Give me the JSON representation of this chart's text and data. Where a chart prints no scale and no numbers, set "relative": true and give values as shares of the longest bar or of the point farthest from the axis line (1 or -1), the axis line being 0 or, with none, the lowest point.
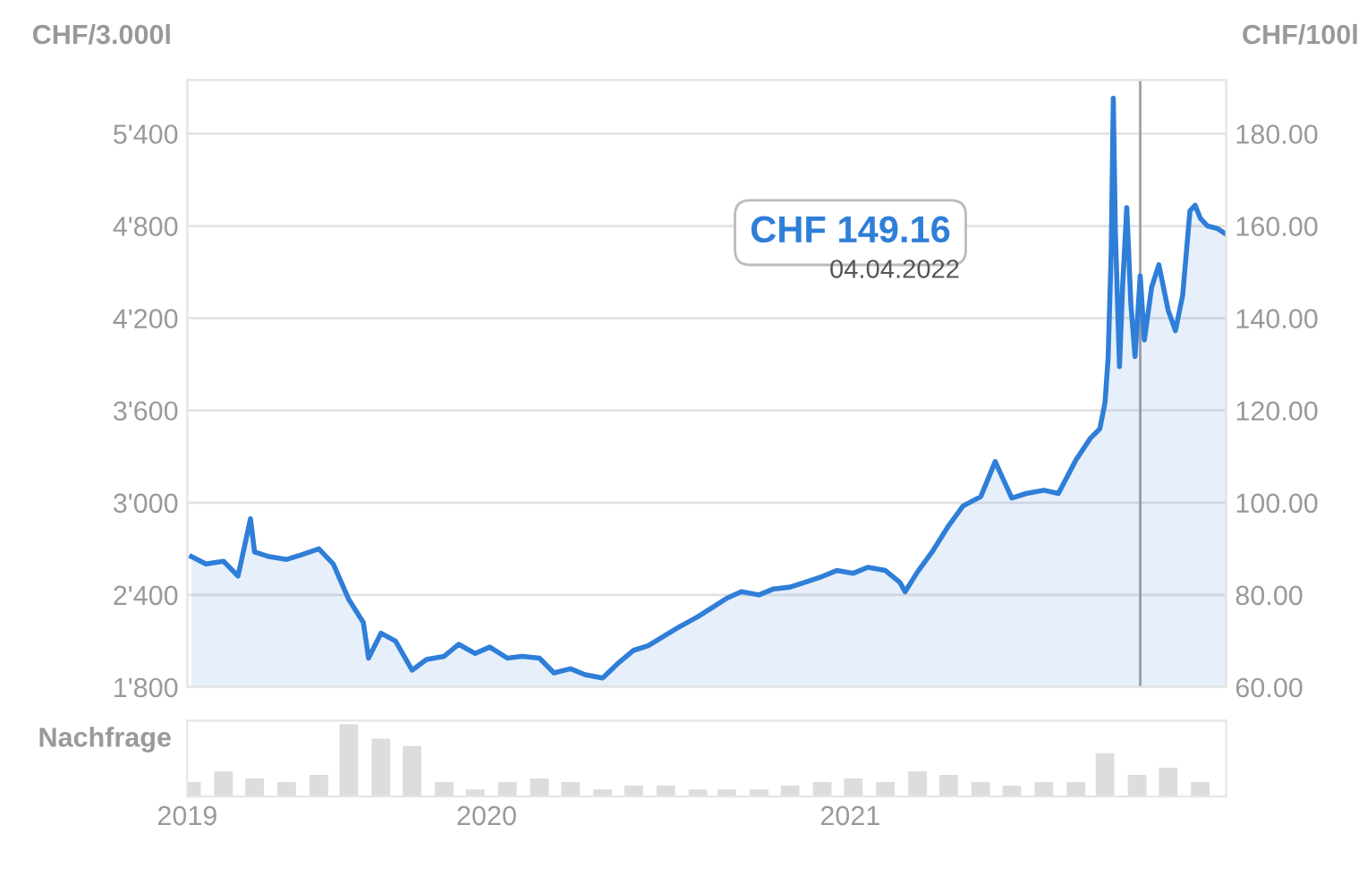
{
  "chart_data": [
    {
      "type": "area",
      "ylabel": "CHF/3.000l",
      "y2label": "CHF/100l",
      "x": [
        "2019-10-01",
        "2019-10-15",
        "2019-11-01",
        "2019-11-15",
        "2019-11-27",
        "2019-12-01",
        "2019-12-15",
        "2020-01-01",
        "2020-01-15",
        "2020-02-01",
        "2020-02-15",
        "2020-03-01",
        "2020-03-15",
        "2020-03-20",
        "2020-04-01",
        "2020-04-15",
        "2020-05-01",
        "2020-05-15",
        "2020-06-01",
        "2020-06-15",
        "2020-07-01",
        "2020-07-15",
        "2020-08-01",
        "2020-08-15",
        "2020-09-01",
        "2020-09-15",
        "2020-10-01",
        "2020-10-15",
        "2020-11-01",
        "2020-11-15",
        "2020-12-01",
        "2020-12-15",
        "2021-01-01",
        "2021-01-15",
        "2021-02-01",
        "2021-02-15",
        "2021-03-01",
        "2021-03-15",
        "2021-04-01",
        "2021-04-15",
        "2021-05-01",
        "2021-05-15",
        "2021-06-01",
        "2021-06-15",
        "2021-07-01",
        "2021-07-15",
        "2021-08-01",
        "2021-08-15",
        "2021-08-20",
        "2021-09-01",
        "2021-09-15",
        "2021-10-01",
        "2021-10-15",
        "2021-11-01",
        "2021-11-15",
        "2021-12-01",
        "2021-12-15",
        "2022-01-01",
        "2022-01-15",
        "2022-02-01",
        "2022-02-15",
        "2022-02-24",
        "2022-03-01",
        "2022-03-04",
        "2022-03-07",
        "2022-03-09",
        "2022-03-11",
        "2022-03-15",
        "2022-03-18",
        "2022-03-22",
        "2022-03-26",
        "2022-03-30",
        "2022-04-04",
        "2022-04-08",
        "2022-04-15",
        "2022-04-22",
        "2022-05-01",
        "2022-05-08",
        "2022-05-15",
        "2022-05-22",
        "2022-05-27",
        "2022-06-01",
        "2022-06-08",
        "2022-06-18",
        "2022-06-26"
      ],
      "series": [
        {
          "color": "#2f7ed8",
          "axis": "y2",
          "values": [
            88.3,
            86.7,
            87.3,
            84.1,
            96.5,
            89.3,
            88.3,
            87.7,
            88.7,
            90.0,
            86.7,
            79.0,
            74.0,
            66.3,
            71.7,
            70.0,
            63.7,
            66.0,
            66.7,
            69.3,
            67.3,
            68.7,
            66.3,
            66.7,
            66.3,
            63.1,
            64.0,
            62.7,
            62.0,
            65.0,
            68.0,
            69.0,
            71.3,
            73.2,
            75.3,
            77.3,
            79.3,
            80.7,
            80.0,
            81.3,
            81.7,
            82.7,
            84.0,
            85.3,
            84.7,
            86.0,
            85.3,
            82.7,
            80.7,
            85.0,
            89.3,
            95.0,
            99.3,
            101.3,
            108.9,
            101.0,
            102.0,
            102.7,
            102.0,
            109.3,
            114.0,
            116.0,
            121.7,
            131.3,
            154.7,
            187.7,
            158.7,
            129.5,
            147.0,
            164.0,
            143.0,
            131.7,
            149.2,
            135.3,
            146.7,
            151.6,
            141.7,
            137.3,
            145.0,
            163.3,
            164.5,
            161.7,
            160.0,
            159.4,
            158.2
          ]
        }
      ],
      "xlim": [
        "2019-09-27",
        "2022-06-26"
      ],
      "ylim": [
        1800,
        5750
      ],
      "yticks": [
        {
          "value": 1800,
          "label": "1'800"
        },
        {
          "value": 2400,
          "label": "2'400"
        },
        {
          "value": 3000,
          "label": "3'000"
        },
        {
          "value": 3600,
          "label": "3'600"
        },
        {
          "value": 4200,
          "label": "4'200"
        },
        {
          "value": 4800,
          "label": "4'800"
        },
        {
          "value": 5400,
          "label": "5'400"
        }
      ],
      "y2lim": [
        60,
        191.67
      ],
      "y2ticks": [
        {
          "value": 60,
          "label": "60.00"
        },
        {
          "value": 80,
          "label": "80.00"
        },
        {
          "value": 100,
          "label": "100.00"
        },
        {
          "value": 120,
          "label": "120.00"
        },
        {
          "value": 140,
          "label": "140.00"
        },
        {
          "value": 160,
          "label": "160.00"
        },
        {
          "value": 180,
          "label": "180.00"
        }
      ],
      "tick_labels": "y",
      "grid": "y",
      "ref_lines": [
        {
          "axis": "x",
          "value": "2022-04-04",
          "color": "#a0a0a0"
        }
      ],
      "annotations": [
        "CHF 149.16",
        "04.04.2022"
      ]
    },
    {
      "type": "bar",
      "relative": true,
      "ylabel": "Nachfrage",
      "color": "#dddddd",
      "x": [
        "2019-10-01",
        "2019-11-01",
        "2019-12-01",
        "2020-01-01",
        "2020-02-01",
        "2020-03-01",
        "2020-04-01",
        "2020-05-01",
        "2020-06-01",
        "2020-07-01",
        "2020-08-01",
        "2020-09-01",
        "2020-10-01",
        "2020-11-01",
        "2020-12-01",
        "2021-01-01",
        "2021-02-01",
        "2021-03-01",
        "2021-04-01",
        "2021-05-01",
        "2021-06-01",
        "2021-07-01",
        "2021-08-01",
        "2021-09-01",
        "2021-10-01",
        "2021-11-01",
        "2021-12-01",
        "2022-01-01",
        "2022-02-01",
        "2022-03-01",
        "2022-04-01",
        "2022-05-01",
        "2022-06-01"
      ],
      "values": [
        0.2,
        0.35,
        0.25,
        0.2,
        0.3,
        1.0,
        0.8,
        0.7,
        0.2,
        0.1,
        0.2,
        0.25,
        0.2,
        0.1,
        0.15,
        0.15,
        0.1,
        0.1,
        0.1,
        0.15,
        0.2,
        0.25,
        0.2,
        0.35,
        0.3,
        0.2,
        0.15,
        0.2,
        0.2,
        0.6,
        0.3,
        0.4,
        0.2
      ],
      "xlim": [
        "2019-09-27",
        "2022-06-26"
      ],
      "xticks": [
        {
          "value": "2019-09-27",
          "label": "2019"
        },
        {
          "value": "2020-07-12",
          "label": "2020"
        },
        {
          "value": "2021-06-28",
          "label": "2021"
        }
      ],
      "tick_labels": "x"
    }
  ]
}
